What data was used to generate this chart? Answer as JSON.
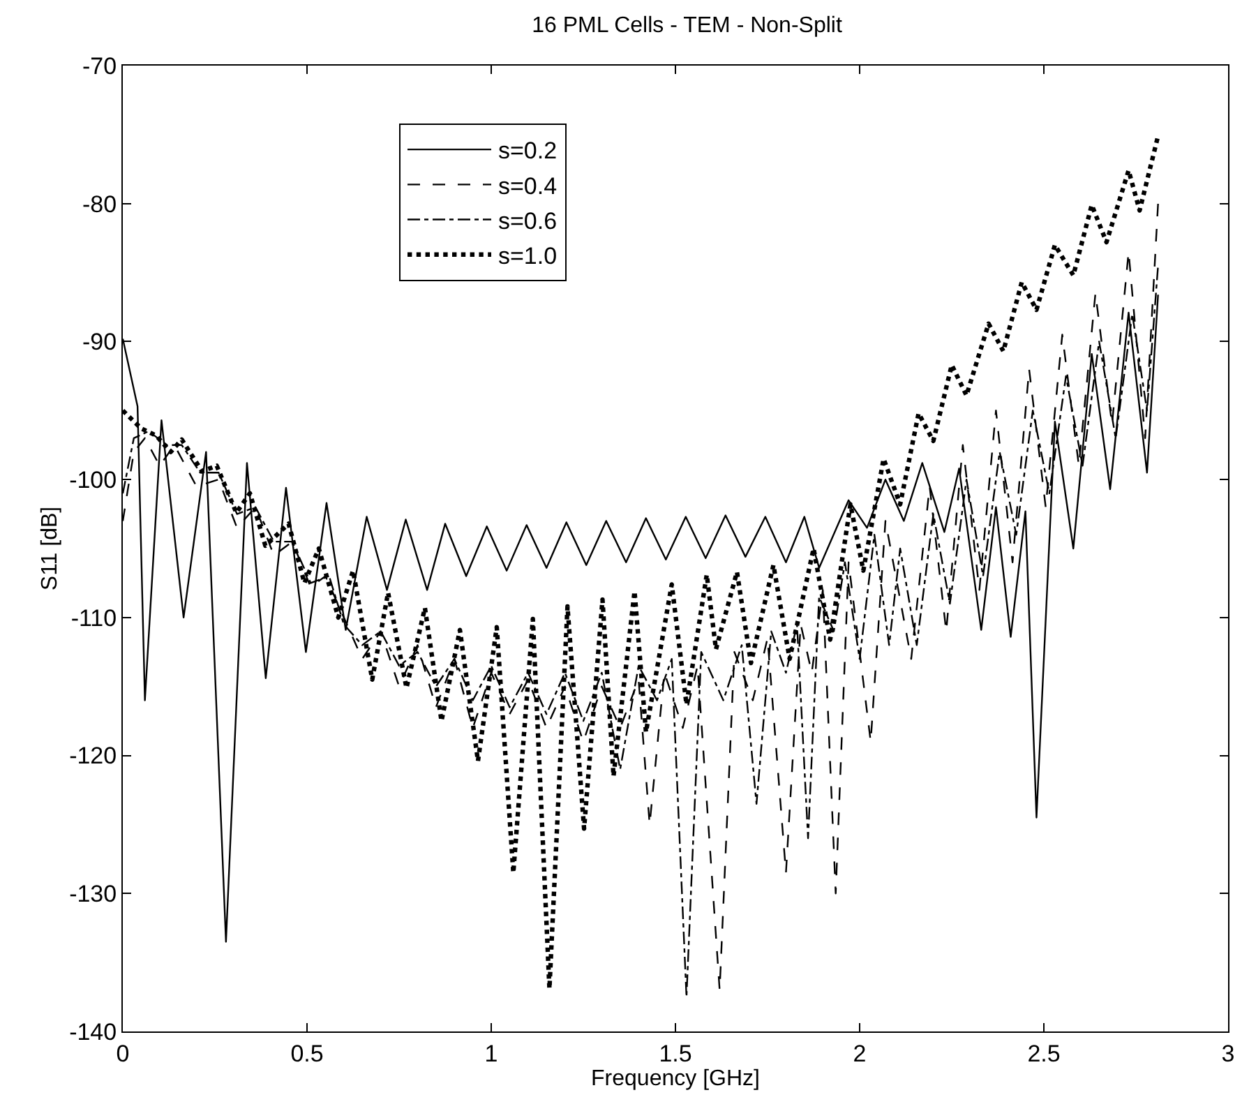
{
  "chart_data": {
    "type": "line",
    "title": "16 PML Cells - TEM - Non-Split",
    "xlabel": "Frequency [GHz]",
    "ylabel": "S11 [dB]",
    "xlim": [
      0,
      3
    ],
    "xticks": [
      0,
      0.5,
      1,
      1.5,
      2,
      2.5,
      3
    ],
    "ylim": [
      -140,
      -70
    ],
    "yticks": [
      -140,
      -130,
      -120,
      -110,
      -100,
      -90,
      -80,
      -70
    ],
    "legend": "top left",
    "marker": "none",
    "series": [
      {
        "name": "s=0.2",
        "color": "#000000",
        "line_style": "solid",
        "x": [
          0.0,
          0.04,
          0.06,
          0.105,
          0.165,
          0.226,
          0.28,
          0.337,
          0.388,
          0.443,
          0.497,
          0.553,
          0.605,
          0.662,
          0.717,
          0.768,
          0.826,
          0.875,
          0.932,
          0.988,
          1.042,
          1.096,
          1.15,
          1.204,
          1.258,
          1.312,
          1.366,
          1.42,
          1.474,
          1.528,
          1.582,
          1.636,
          1.69,
          1.744,
          1.8,
          1.85,
          1.89,
          1.97,
          2.02,
          2.07,
          2.12,
          2.17,
          2.23,
          2.27,
          2.33,
          2.37,
          2.41,
          2.45,
          2.48,
          2.53,
          2.58,
          2.63,
          2.68,
          2.73,
          2.78,
          2.81
        ],
        "values": [
          -89.8,
          -94.7,
          -116,
          -95.7,
          -110,
          -98,
          -133.5,
          -98.8,
          -114.4,
          -100.6,
          -112.5,
          -101.7,
          -110.9,
          -102.7,
          -108,
          -102.9,
          -108,
          -103.2,
          -107,
          -103.4,
          -106.6,
          -103.3,
          -106.4,
          -103.1,
          -106.2,
          -103,
          -106,
          -102.8,
          -105.8,
          -102.7,
          -105.7,
          -102.6,
          -105.6,
          -102.7,
          -106,
          -102.7,
          -106.4,
          -101.5,
          -103.5,
          -100,
          -103,
          -98.8,
          -103.8,
          -99.2,
          -110.9,
          -102,
          -111.4,
          -102.3,
          -124.5,
          -95.8,
          -105,
          -90.9,
          -100.7,
          -87.9,
          -99.5,
          -86.6
        ]
      },
      {
        "name": "s=0.4",
        "color": "#000000",
        "line_style": "dashed",
        "x": [
          0.0,
          0.03,
          0.06,
          0.1,
          0.14,
          0.2,
          0.26,
          0.31,
          0.36,
          0.41,
          0.46,
          0.51,
          0.55,
          0.6,
          0.65,
          0.7,
          0.75,
          0.8,
          0.85,
          0.9,
          0.95,
          1.0,
          1.05,
          1.1,
          1.15,
          1.2,
          1.25,
          1.3,
          1.35,
          1.4,
          1.43,
          1.47,
          1.52,
          1.56,
          1.62,
          1.66,
          1.71,
          1.75,
          1.8,
          1.84,
          1.87,
          1.9,
          1.935,
          1.97,
          2.03,
          2.07,
          2.14,
          2.19,
          2.235,
          2.28,
          2.325,
          2.37,
          2.415,
          2.46,
          2.505,
          2.55,
          2.595,
          2.64,
          2.685,
          2.73,
          2.775,
          2.81
        ],
        "values": [
          -103,
          -98,
          -97,
          -99,
          -97.5,
          -100.5,
          -100,
          -103.5,
          -102,
          -105.5,
          -104.5,
          -107.8,
          -107,
          -110,
          -113,
          -111,
          -115,
          -112,
          -116.5,
          -113,
          -118,
          -114,
          -117,
          -114.5,
          -118,
          -115,
          -119,
          -115,
          -118,
          -114.5,
          -125,
          -114,
          -118,
          -113.5,
          -137,
          -112.5,
          -116,
          -111.5,
          -128.5,
          -110.5,
          -114,
          -108,
          -130,
          -106,
          -119,
          -103,
          -113,
          -100.5,
          -111,
          -97.5,
          -108,
          -95,
          -106,
          -92,
          -102,
          -89.5,
          -99,
          -86.5,
          -96,
          -83.5,
          -97,
          -80
        ]
      },
      {
        "name": "s=0.6",
        "color": "#000000",
        "line_style": "dashdot",
        "x": [
          0.0,
          0.03,
          0.07,
          0.12,
          0.16,
          0.21,
          0.26,
          0.31,
          0.36,
          0.41,
          0.46,
          0.51,
          0.56,
          0.6,
          0.65,
          0.7,
          0.75,
          0.8,
          0.85,
          0.9,
          0.95,
          1.0,
          1.05,
          1.1,
          1.15,
          1.2,
          1.25,
          1.3,
          1.35,
          1.4,
          1.45,
          1.49,
          1.53,
          1.57,
          1.63,
          1.68,
          1.72,
          1.76,
          1.8,
          1.83,
          1.86,
          1.89,
          1.93,
          1.96,
          2.0,
          2.04,
          2.08,
          2.11,
          2.155,
          2.2,
          2.245,
          2.29,
          2.335,
          2.38,
          2.425,
          2.47,
          2.515,
          2.56,
          2.605,
          2.65,
          2.695,
          2.74,
          2.78,
          2.81
        ],
        "values": [
          -101,
          -97,
          -96.5,
          -97.5,
          -97.5,
          -99.5,
          -99.5,
          -102.5,
          -102,
          -104.5,
          -104.5,
          -107.5,
          -107,
          -110.5,
          -112,
          -111,
          -113.5,
          -112.5,
          -115,
          -113,
          -116,
          -113.5,
          -116.5,
          -114,
          -117,
          -114,
          -117.5,
          -114,
          -121,
          -113.5,
          -116,
          -113,
          -137.5,
          -112.5,
          -116,
          -112,
          -123.5,
          -111,
          -114,
          -110.5,
          -126,
          -108.5,
          -111,
          -106,
          -113,
          -104,
          -112,
          -105,
          -112,
          -102.5,
          -109,
          -100,
          -107,
          -98,
          -104,
          -95,
          -101,
          -92.5,
          -99,
          -90,
          -97,
          -88,
          -95,
          -84.5
        ]
      },
      {
        "name": "s=1.0",
        "color": "#000000",
        "line_style": "dotted",
        "x": [
          0.0,
          0.05,
          0.09,
          0.13,
          0.16,
          0.215,
          0.255,
          0.308,
          0.345,
          0.387,
          0.45,
          0.493,
          0.532,
          0.585,
          0.625,
          0.677,
          0.72,
          0.77,
          0.82,
          0.865,
          0.915,
          0.964,
          1.015,
          1.06,
          1.113,
          1.158,
          1.207,
          1.252,
          1.302,
          1.332,
          1.389,
          1.42,
          1.49,
          1.53,
          1.585,
          1.61,
          1.667,
          1.705,
          1.766,
          1.81,
          1.875,
          1.92,
          1.975,
          2.01,
          2.065,
          2.11,
          2.16,
          2.2,
          2.25,
          2.29,
          2.35,
          2.39,
          2.44,
          2.48,
          2.53,
          2.58,
          2.63,
          2.67,
          2.73,
          2.76,
          2.81
        ],
        "values": [
          -95,
          -96.3,
          -96.8,
          -98,
          -97.1,
          -99.4,
          -99,
          -102.4,
          -101,
          -104.8,
          -103.2,
          -107.5,
          -105,
          -110,
          -106.6,
          -114.5,
          -108.2,
          -115.1,
          -109.3,
          -117.5,
          -110.9,
          -120.4,
          -110.7,
          -128.5,
          -110.1,
          -136.9,
          -109.2,
          -125.3,
          -108.7,
          -121.5,
          -108.1,
          -118.3,
          -107.6,
          -116.3,
          -106.9,
          -112.3,
          -106.7,
          -113.3,
          -106.2,
          -113,
          -105,
          -111.6,
          -101.8,
          -106.6,
          -98.5,
          -101.8,
          -95.2,
          -97.2,
          -91.7,
          -93.9,
          -88.7,
          -90.7,
          -85.7,
          -87.7,
          -83,
          -85.2,
          -80.1,
          -82.8,
          -77.6,
          -80.5,
          -75.1
        ]
      }
    ]
  }
}
